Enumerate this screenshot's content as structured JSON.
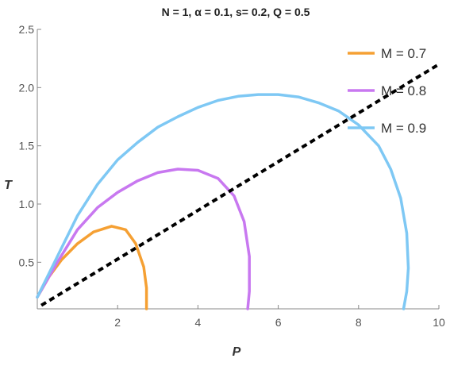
{
  "chart_data": {
    "type": "line",
    "title": "N = 1, α = 0.1, s= 0.2, Q = 0.5",
    "xlabel": "P",
    "ylabel": "T",
    "xlim": [
      0,
      10
    ],
    "ylim": [
      0.1,
      2.5
    ],
    "xticks": [
      2,
      4,
      6,
      8,
      10
    ],
    "yticks": [
      0.5,
      1.0,
      1.5,
      2.0,
      2.5
    ],
    "ytick_labels": [
      "0.5",
      "1.0",
      "1.5",
      "2.0",
      "2.5"
    ],
    "grid": false,
    "legend_position": "top-right",
    "series": [
      {
        "name": "M = 0.7",
        "color": "#f5a033",
        "points": [
          [
            0.0,
            0.2
          ],
          [
            0.3,
            0.38
          ],
          [
            0.6,
            0.52
          ],
          [
            1.0,
            0.66
          ],
          [
            1.4,
            0.76
          ],
          [
            1.85,
            0.81
          ],
          [
            2.2,
            0.78
          ],
          [
            2.45,
            0.66
          ],
          [
            2.65,
            0.46
          ],
          [
            2.72,
            0.28
          ],
          [
            2.72,
            0.1
          ]
        ]
      },
      {
        "name": "M = 0.8",
        "color": "#c878f0",
        "points": [
          [
            0.0,
            0.2
          ],
          [
            0.5,
            0.5
          ],
          [
            1.0,
            0.78
          ],
          [
            1.5,
            0.97
          ],
          [
            2.0,
            1.1
          ],
          [
            2.5,
            1.2
          ],
          [
            3.0,
            1.27
          ],
          [
            3.5,
            1.3
          ],
          [
            4.0,
            1.29
          ],
          [
            4.5,
            1.22
          ],
          [
            4.9,
            1.07
          ],
          [
            5.15,
            0.85
          ],
          [
            5.28,
            0.55
          ],
          [
            5.28,
            0.25
          ],
          [
            5.24,
            0.1
          ]
        ]
      },
      {
        "name": "M = 0.9",
        "color": "#7ec8f4",
        "points": [
          [
            0.0,
            0.2
          ],
          [
            0.5,
            0.55
          ],
          [
            1.0,
            0.9
          ],
          [
            1.5,
            1.17
          ],
          [
            2.0,
            1.38
          ],
          [
            2.5,
            1.53
          ],
          [
            3.0,
            1.66
          ],
          [
            3.5,
            1.75
          ],
          [
            4.0,
            1.83
          ],
          [
            4.5,
            1.89
          ],
          [
            5.0,
            1.925
          ],
          [
            5.5,
            1.94
          ],
          [
            6.0,
            1.94
          ],
          [
            6.5,
            1.92
          ],
          [
            7.0,
            1.87
          ],
          [
            7.5,
            1.8
          ],
          [
            8.0,
            1.68
          ],
          [
            8.5,
            1.5
          ],
          [
            8.8,
            1.3
          ],
          [
            9.05,
            1.05
          ],
          [
            9.2,
            0.75
          ],
          [
            9.24,
            0.45
          ],
          [
            9.2,
            0.25
          ],
          [
            9.12,
            0.1
          ]
        ]
      }
    ],
    "reference_line": {
      "style": "dashed",
      "color": "#000000",
      "points": [
        [
          0.1,
          0.13
        ],
        [
          10,
          2.2
        ]
      ]
    }
  }
}
